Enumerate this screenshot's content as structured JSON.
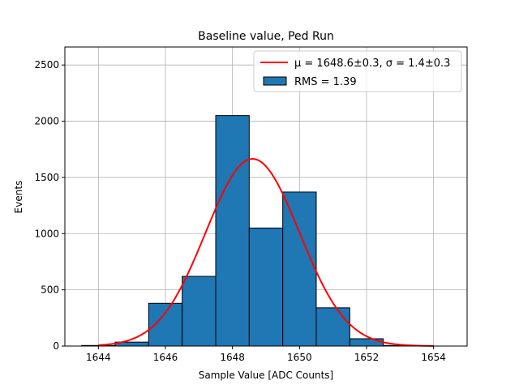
{
  "chart_data": {
    "type": "bar",
    "title": "Baseline value, Ped Run",
    "xlabel": "Sample Value [ADC Counts]",
    "ylabel": "Events",
    "xlim": [
      1643.0,
      1655.0
    ],
    "ylim": [
      0,
      2660
    ],
    "grid": true,
    "xticks": [
      1644,
      1646,
      1648,
      1650,
      1652,
      1654
    ],
    "yticks": [
      0,
      500,
      1000,
      1500,
      2000,
      2500
    ],
    "bar_color": "#1f77b4",
    "bar_edge_color": "#000000",
    "fit_color": "#ff0000",
    "bins": [
      {
        "left": 1643.5,
        "right": 1644.5,
        "value": 5
      },
      {
        "left": 1644.5,
        "right": 1645.5,
        "value": 35
      },
      {
        "left": 1645.5,
        "right": 1646.5,
        "value": 380
      },
      {
        "left": 1646.5,
        "right": 1647.5,
        "value": 620
      },
      {
        "left": 1647.5,
        "right": 1648.5,
        "value": 2050
      },
      {
        "left": 1648.5,
        "right": 1649.5,
        "value": 1050
      },
      {
        "left": 1649.5,
        "right": 1650.5,
        "value": 1370
      },
      {
        "left": 1650.5,
        "right": 1651.5,
        "value": 340
      },
      {
        "left": 1651.5,
        "right": 1652.5,
        "value": 65
      },
      {
        "left": 1652.5,
        "right": 1653.5,
        "value": 5
      }
    ],
    "fit": {
      "type": "gaussian",
      "amplitude": 1665,
      "mu": 1648.6,
      "sigma": 1.4,
      "x_range": [
        1644.0,
        1654.0
      ]
    },
    "legend": {
      "position": "top-right",
      "fit_label": "μ = 1648.6±0.3, σ = 1.4±0.3",
      "hist_label": "RMS = 1.39"
    }
  }
}
